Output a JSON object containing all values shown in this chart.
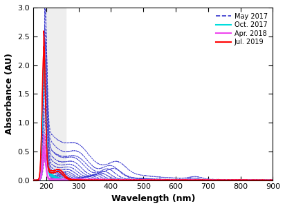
{
  "title": "",
  "xlabel": "Wavelength (nm)",
  "ylabel": "Absorbance (AU)",
  "xlim": [
    160,
    900
  ],
  "ylim": [
    0.0,
    3.0
  ],
  "xticks": [
    200,
    300,
    400,
    500,
    600,
    700,
    800,
    900
  ],
  "yticks": [
    0.0,
    0.5,
    1.0,
    1.5,
    2.0,
    2.5,
    3.0
  ],
  "legend": [
    {
      "label": "May 2017",
      "color": "#3333CC",
      "linestyle": "--"
    },
    {
      "label": "Oct. 2017",
      "color": "#00DDDD",
      "linestyle": "-"
    },
    {
      "label": "Apr. 2018",
      "color": "#EE44EE",
      "linestyle": "-"
    },
    {
      "label": "Jul. 2019",
      "color": "#FF0000",
      "linestyle": "-"
    }
  ],
  "shade_region": [
    200,
    260
  ],
  "shade_color": "#EEEEEE",
  "background_color": "#ffffff",
  "figsize": [
    4.12,
    3.02
  ],
  "dpi": 100
}
